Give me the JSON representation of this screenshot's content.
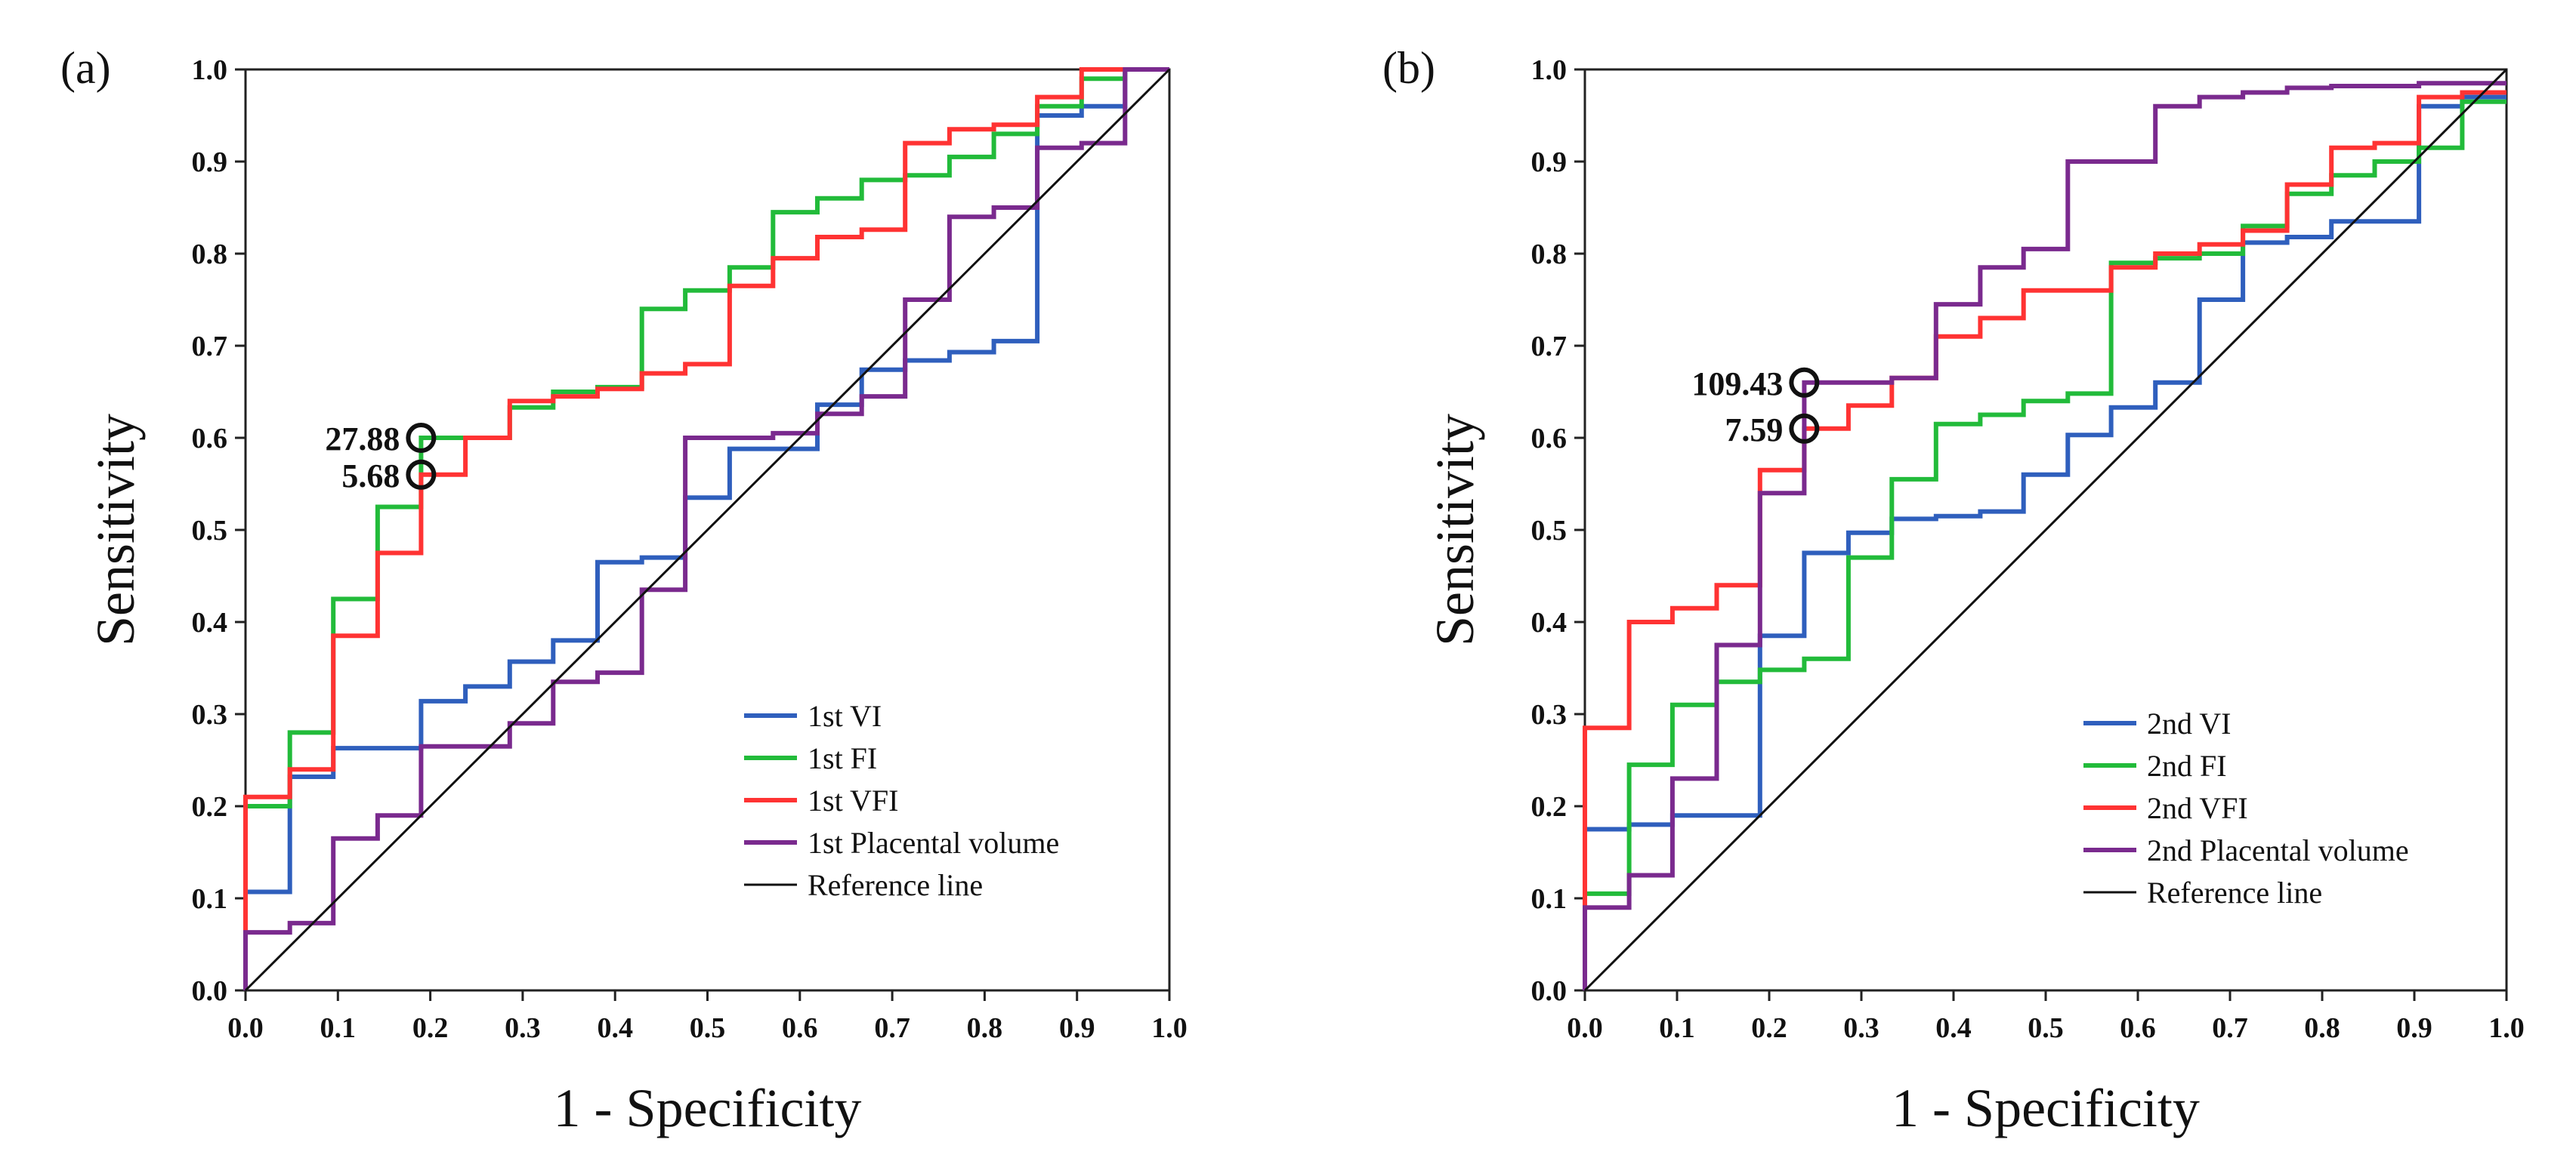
{
  "chart_data": [
    {
      "type": "line",
      "panel_label": "(a)",
      "xlabel": "1 - Specificity",
      "ylabel": "Sensitivity",
      "xlim": [
        0,
        1
      ],
      "ylim": [
        0,
        1
      ],
      "xticks": [
        "0.0",
        "0.1",
        "0.2",
        "0.3",
        "0.4",
        "0.5",
        "0.6",
        "0.7",
        "0.8",
        "0.9",
        "1.0"
      ],
      "yticks": [
        "0.0",
        "0.1",
        "0.2",
        "0.3",
        "0.4",
        "0.5",
        "0.6",
        "0.7",
        "0.8",
        "0.9",
        "1.0"
      ],
      "legend_position": "bottom-right",
      "series": [
        {
          "name": "1st VI",
          "color": "#2f5fbd",
          "x": [
            0,
            0,
            0.048,
            0.048,
            0.095,
            0.095,
            0.19,
            0.19,
            0.238,
            0.238,
            0.286,
            0.286,
            0.333,
            0.333,
            0.381,
            0.381,
            0.429,
            0.429,
            0.476,
            0.476,
            0.524,
            0.524,
            0.571,
            0.571,
            0.619,
            0.619,
            0.667,
            0.667,
            0.714,
            0.714,
            0.762,
            0.762,
            0.81,
            0.81,
            0.857,
            0.857,
            0.905,
            0.905,
            0.952,
            0.952,
            1
          ],
          "y": [
            0,
            0.107,
            0.107,
            0.232,
            0.232,
            0.263,
            0.263,
            0.314,
            0.314,
            0.33,
            0.33,
            0.357,
            0.357,
            0.38,
            0.38,
            0.465,
            0.465,
            0.47,
            0.47,
            0.535,
            0.535,
            0.588,
            0.588,
            0.588,
            0.588,
            0.636,
            0.636,
            0.674,
            0.674,
            0.684,
            0.684,
            0.693,
            0.693,
            0.705,
            0.705,
            0.95,
            0.95,
            0.96,
            0.96,
            1,
            1
          ]
        },
        {
          "name": "1st FI",
          "color": "#22bb3a",
          "x": [
            0,
            0,
            0.048,
            0.048,
            0.095,
            0.095,
            0.143,
            0.143,
            0.19,
            0.19,
            0.238,
            0.238,
            0.286,
            0.286,
            0.333,
            0.333,
            0.381,
            0.381,
            0.429,
            0.429,
            0.476,
            0.476,
            0.524,
            0.524,
            0.571,
            0.571,
            0.619,
            0.619,
            0.667,
            0.667,
            0.714,
            0.714,
            0.762,
            0.762,
            0.81,
            0.81,
            0.857,
            0.857,
            0.905,
            0.905,
            0.952,
            0.952,
            1
          ],
          "y": [
            0,
            0.2,
            0.2,
            0.28,
            0.28,
            0.425,
            0.425,
            0.525,
            0.525,
            0.6,
            0.6,
            0.6,
            0.6,
            0.633,
            0.633,
            0.65,
            0.65,
            0.655,
            0.655,
            0.74,
            0.74,
            0.76,
            0.76,
            0.785,
            0.785,
            0.845,
            0.845,
            0.86,
            0.86,
            0.88,
            0.88,
            0.885,
            0.885,
            0.905,
            0.905,
            0.93,
            0.93,
            0.96,
            0.96,
            0.99,
            0.99,
            1,
            1
          ]
        },
        {
          "name": "1st VFI",
          "color": "#ff3333",
          "x": [
            0,
            0,
            0.048,
            0.048,
            0.095,
            0.095,
            0.143,
            0.143,
            0.19,
            0.19,
            0.238,
            0.238,
            0.286,
            0.286,
            0.333,
            0.333,
            0.381,
            0.381,
            0.429,
            0.429,
            0.476,
            0.476,
            0.524,
            0.524,
            0.571,
            0.571,
            0.619,
            0.619,
            0.667,
            0.667,
            0.714,
            0.714,
            0.762,
            0.762,
            0.81,
            0.81,
            0.857,
            0.857,
            0.905,
            0.905,
            0.952,
            0.952,
            1
          ],
          "y": [
            0,
            0.21,
            0.21,
            0.24,
            0.24,
            0.385,
            0.385,
            0.475,
            0.475,
            0.56,
            0.56,
            0.6,
            0.6,
            0.64,
            0.64,
            0.645,
            0.645,
            0.653,
            0.653,
            0.67,
            0.67,
            0.68,
            0.68,
            0.765,
            0.765,
            0.795,
            0.795,
            0.818,
            0.818,
            0.826,
            0.826,
            0.92,
            0.92,
            0.935,
            0.935,
            0.94,
            0.94,
            0.97,
            0.97,
            1,
            1,
            1,
            1
          ]
        },
        {
          "name": "1st Placental volume",
          "color": "#7a2a8e",
          "x": [
            0,
            0,
            0.048,
            0.048,
            0.095,
            0.095,
            0.143,
            0.143,
            0.19,
            0.19,
            0.238,
            0.238,
            0.286,
            0.286,
            0.333,
            0.333,
            0.381,
            0.381,
            0.429,
            0.429,
            0.476,
            0.476,
            0.524,
            0.524,
            0.571,
            0.571,
            0.619,
            0.619,
            0.667,
            0.667,
            0.714,
            0.714,
            0.762,
            0.762,
            0.81,
            0.81,
            0.857,
            0.857,
            0.905,
            0.905,
            0.952,
            0.952,
            1
          ],
          "y": [
            0,
            0.063,
            0.063,
            0.073,
            0.073,
            0.165,
            0.165,
            0.19,
            0.19,
            0.265,
            0.265,
            0.265,
            0.265,
            0.29,
            0.29,
            0.335,
            0.335,
            0.345,
            0.345,
            0.435,
            0.435,
            0.6,
            0.6,
            0.6,
            0.6,
            0.605,
            0.605,
            0.626,
            0.626,
            0.645,
            0.645,
            0.75,
            0.75,
            0.84,
            0.84,
            0.85,
            0.85,
            0.915,
            0.915,
            0.92,
            0.92,
            1,
            1
          ]
        },
        {
          "name": "Reference line",
          "color": "#111111",
          "x": [
            0,
            1
          ],
          "y": [
            0,
            1
          ]
        }
      ],
      "annotations": [
        {
          "text": "27.88",
          "x": 0.19,
          "y": 0.6
        },
        {
          "text": "5.68",
          "x": 0.19,
          "y": 0.56
        }
      ]
    },
    {
      "type": "line",
      "panel_label": "(b)",
      "xlabel": "1 - Specificity",
      "ylabel": "Sensitivity",
      "xlim": [
        0,
        1
      ],
      "ylim": [
        0,
        1
      ],
      "xticks": [
        "0.0",
        "0.1",
        "0.2",
        "0.3",
        "0.4",
        "0.5",
        "0.6",
        "0.7",
        "0.8",
        "0.9",
        "1.0"
      ],
      "yticks": [
        "0.0",
        "0.1",
        "0.2",
        "0.3",
        "0.4",
        "0.5",
        "0.6",
        "0.7",
        "0.8",
        "0.9",
        "1.0"
      ],
      "legend_position": "bottom-right",
      "series": [
        {
          "name": "2nd VI",
          "color": "#2f5fbd",
          "x": [
            0,
            0,
            0.048,
            0.048,
            0.095,
            0.095,
            0.19,
            0.19,
            0.238,
            0.238,
            0.286,
            0.286,
            0.333,
            0.333,
            0.381,
            0.381,
            0.429,
            0.429,
            0.476,
            0.476,
            0.524,
            0.524,
            0.571,
            0.571,
            0.619,
            0.619,
            0.667,
            0.667,
            0.714,
            0.714,
            0.762,
            0.762,
            0.81,
            0.81,
            0.857,
            0.857,
            0.905,
            0.905,
            0.952,
            0.952,
            1
          ],
          "y": [
            0,
            0.175,
            0.175,
            0.18,
            0.18,
            0.19,
            0.19,
            0.385,
            0.385,
            0.475,
            0.475,
            0.497,
            0.497,
            0.512,
            0.512,
            0.515,
            0.515,
            0.52,
            0.52,
            0.56,
            0.56,
            0.603,
            0.603,
            0.633,
            0.633,
            0.66,
            0.66,
            0.75,
            0.75,
            0.812,
            0.812,
            0.818,
            0.818,
            0.835,
            0.835,
            0.835,
            0.835,
            0.96,
            0.96,
            0.97,
            0.97
          ]
        },
        {
          "name": "2nd FI",
          "color": "#22bb3a",
          "x": [
            0,
            0,
            0.048,
            0.048,
            0.095,
            0.095,
            0.143,
            0.143,
            0.19,
            0.19,
            0.238,
            0.238,
            0.286,
            0.286,
            0.333,
            0.333,
            0.381,
            0.381,
            0.429,
            0.429,
            0.476,
            0.476,
            0.524,
            0.524,
            0.571,
            0.571,
            0.619,
            0.619,
            0.667,
            0.667,
            0.714,
            0.714,
            0.762,
            0.762,
            0.81,
            0.81,
            0.857,
            0.857,
            0.905,
            0.905,
            0.952,
            0.952,
            1
          ],
          "y": [
            0,
            0.105,
            0.105,
            0.245,
            0.245,
            0.31,
            0.31,
            0.335,
            0.335,
            0.348,
            0.348,
            0.36,
            0.36,
            0.47,
            0.47,
            0.555,
            0.555,
            0.615,
            0.615,
            0.625,
            0.625,
            0.64,
            0.64,
            0.648,
            0.648,
            0.79,
            0.79,
            0.795,
            0.795,
            0.8,
            0.8,
            0.83,
            0.83,
            0.865,
            0.865,
            0.885,
            0.885,
            0.9,
            0.9,
            0.915,
            0.915,
            0.965,
            0.965
          ]
        },
        {
          "name": "2nd VFI",
          "color": "#ff3333",
          "x": [
            0,
            0,
            0.048,
            0.048,
            0.095,
            0.095,
            0.143,
            0.143,
            0.19,
            0.19,
            0.238,
            0.238,
            0.286,
            0.286,
            0.333,
            0.333,
            0.381,
            0.381,
            0.429,
            0.429,
            0.476,
            0.476,
            0.524,
            0.524,
            0.571,
            0.571,
            0.619,
            0.619,
            0.667,
            0.667,
            0.714,
            0.714,
            0.762,
            0.762,
            0.81,
            0.81,
            0.857,
            0.857,
            0.905,
            0.905,
            0.952,
            0.952,
            1
          ],
          "y": [
            0,
            0.285,
            0.285,
            0.4,
            0.4,
            0.415,
            0.415,
            0.44,
            0.44,
            0.565,
            0.565,
            0.61,
            0.61,
            0.635,
            0.635,
            0.665,
            0.665,
            0.71,
            0.71,
            0.73,
            0.73,
            0.76,
            0.76,
            0.76,
            0.76,
            0.785,
            0.785,
            0.8,
            0.8,
            0.81,
            0.81,
            0.825,
            0.825,
            0.875,
            0.875,
            0.915,
            0.915,
            0.92,
            0.92,
            0.97,
            0.97,
            0.975,
            0.975
          ]
        },
        {
          "name": "2nd Placental volume",
          "color": "#7a2a8e",
          "x": [
            0,
            0,
            0.048,
            0.048,
            0.095,
            0.095,
            0.143,
            0.143,
            0.19,
            0.19,
            0.238,
            0.238,
            0.286,
            0.286,
            0.333,
            0.333,
            0.381,
            0.381,
            0.429,
            0.429,
            0.476,
            0.476,
            0.524,
            0.524,
            0.571,
            0.571,
            0.619,
            0.619,
            0.667,
            0.667,
            0.714,
            0.714,
            0.762,
            0.762,
            0.81,
            0.81,
            0.857,
            0.857,
            0.905,
            0.905,
            0.952,
            0.952,
            1
          ],
          "y": [
            0,
            0.09,
            0.09,
            0.125,
            0.125,
            0.23,
            0.23,
            0.375,
            0.375,
            0.54,
            0.54,
            0.66,
            0.66,
            0.66,
            0.66,
            0.665,
            0.665,
            0.745,
            0.745,
            0.785,
            0.785,
            0.805,
            0.805,
            0.9,
            0.9,
            0.9,
            0.9,
            0.96,
            0.96,
            0.97,
            0.97,
            0.975,
            0.975,
            0.98,
            0.98,
            0.982,
            0.982,
            0.982,
            0.982,
            0.985,
            0.985,
            0.985,
            0.985
          ]
        },
        {
          "name": "Reference line",
          "color": "#111111",
          "x": [
            0,
            1
          ],
          "y": [
            0,
            1
          ]
        }
      ],
      "annotations": [
        {
          "text": "109.43",
          "x": 0.238,
          "y": 0.66
        },
        {
          "text": "7.59",
          "x": 0.238,
          "y": 0.61
        }
      ]
    }
  ]
}
